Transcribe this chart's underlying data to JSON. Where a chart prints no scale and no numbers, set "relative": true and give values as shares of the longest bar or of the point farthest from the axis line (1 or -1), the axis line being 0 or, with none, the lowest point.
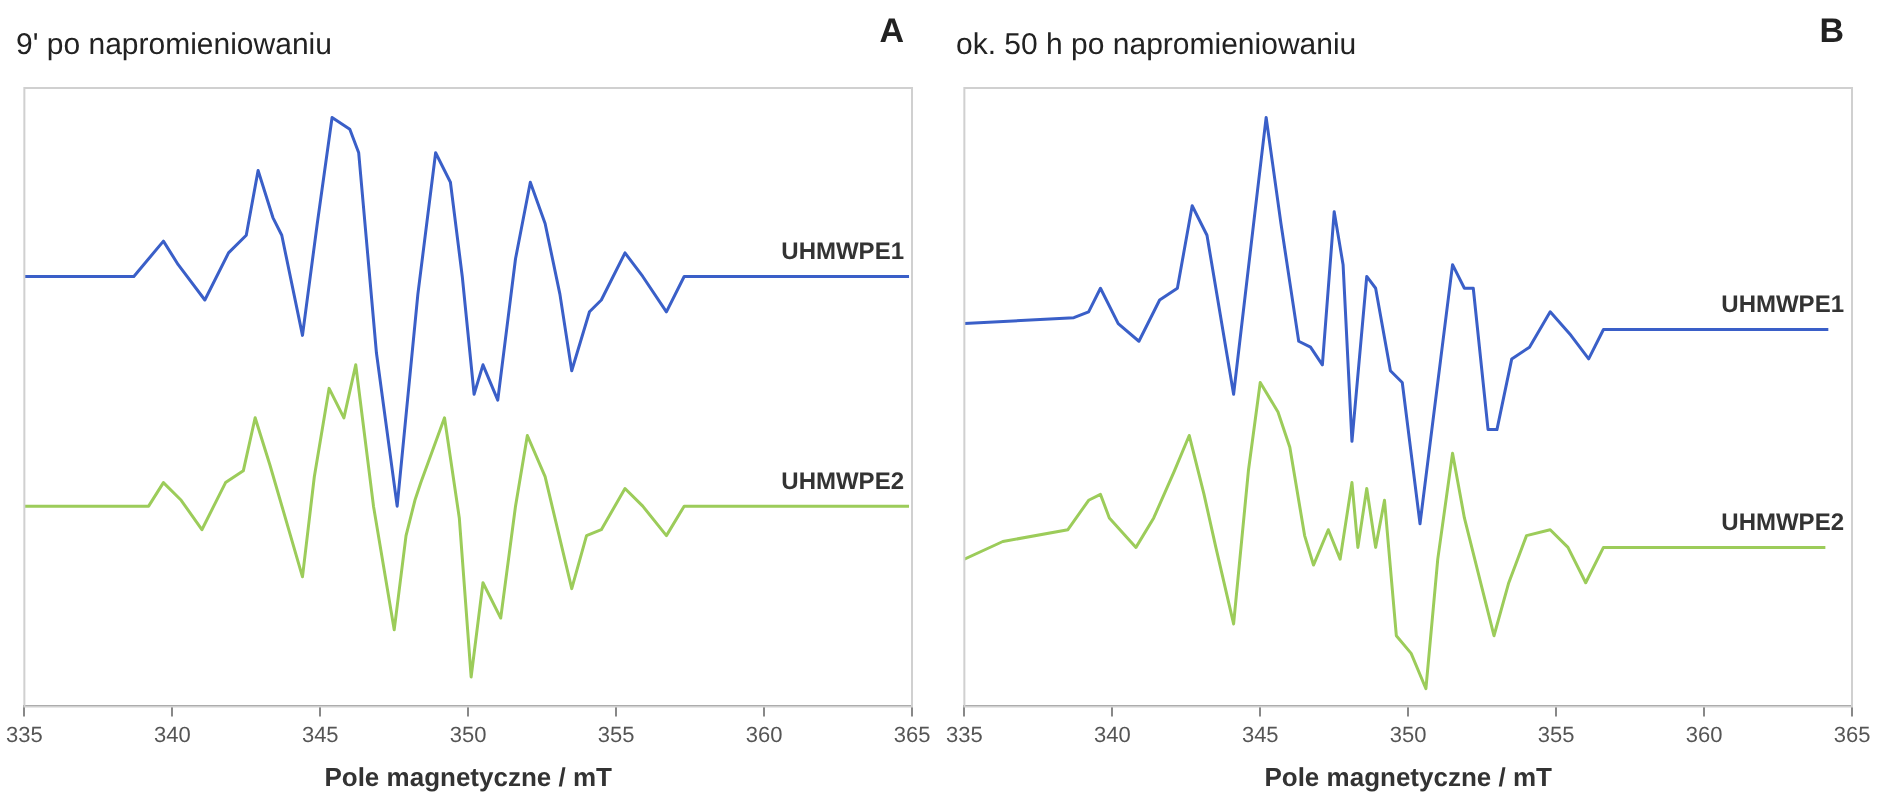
{
  "chart_data": [
    {
      "type": "line",
      "title": "9' po napromieniowaniu",
      "annotations": [
        "A"
      ],
      "xlabel": "Pole magnetyczne / mT",
      "xlim": [
        335,
        365
      ],
      "xticks": [
        335,
        340,
        345,
        350,
        355,
        360,
        365
      ],
      "relative": true,
      "marker": "none",
      "legend": false,
      "grid": false,
      "tick_labels": "x",
      "series": [
        {
          "name": "UHMWPE1",
          "color": "#3a5fc8",
          "x": [
            335,
            338.7,
            339.7,
            340.2,
            341.1,
            341.9,
            342.5,
            342.9,
            343.4,
            343.7,
            344.4,
            344.9,
            345.4,
            346.0,
            346.3,
            346.9,
            347.6,
            348.3,
            348.9,
            349.4,
            349.8,
            350.2,
            350.5,
            351.0,
            351.6,
            352.1,
            352.6,
            353.1,
            353.5,
            354.1,
            354.5,
            355.3,
            355.9,
            356.7,
            357.3,
            358.2,
            364.9
          ],
          "values": [
            0.73,
            0.73,
            0.79,
            0.75,
            0.69,
            0.77,
            0.8,
            0.91,
            0.83,
            0.8,
            0.63,
            0.82,
            1.0,
            0.98,
            0.94,
            0.6,
            0.34,
            0.7,
            0.94,
            0.89,
            0.73,
            0.53,
            0.58,
            0.52,
            0.76,
            0.89,
            0.82,
            0.7,
            0.57,
            0.67,
            0.69,
            0.77,
            0.73,
            0.67,
            0.73,
            0.73,
            0.73
          ]
        },
        {
          "name": "UHMWPE2",
          "color": "#9ccc5a",
          "x": [
            335,
            339.2,
            339.7,
            340.3,
            341.0,
            341.8,
            342.4,
            342.8,
            343.3,
            344.4,
            344.8,
            345.3,
            345.8,
            346.2,
            346.8,
            347.5,
            347.9,
            348.2,
            348.4,
            349.2,
            349.7,
            350.1,
            350.5,
            351.1,
            351.6,
            352.0,
            352.6,
            353.5,
            354.0,
            354.5,
            355.3,
            355.9,
            356.7,
            357.3,
            364.9
          ],
          "values": [
            0.34,
            0.34,
            0.38,
            0.35,
            0.3,
            0.38,
            0.4,
            0.49,
            0.41,
            0.22,
            0.39,
            0.54,
            0.49,
            0.58,
            0.34,
            0.13,
            0.29,
            0.35,
            0.38,
            0.49,
            0.32,
            0.05,
            0.21,
            0.15,
            0.34,
            0.46,
            0.39,
            0.2,
            0.29,
            0.3,
            0.37,
            0.34,
            0.29,
            0.34,
            0.34
          ]
        }
      ]
    },
    {
      "type": "line",
      "title": "ok. 50 h po napromieniowaniu",
      "annotations": [
        "B"
      ],
      "xlabel": "Pole magnetyczne / mT",
      "xlim": [
        335,
        365
      ],
      "xticks": [
        335,
        340,
        345,
        350,
        355,
        360,
        365
      ],
      "relative": true,
      "marker": "none",
      "legend": false,
      "grid": false,
      "tick_labels": "x",
      "series": [
        {
          "name": "UHMWPE1",
          "color": "#3a5fc8",
          "x": [
            335,
            338.7,
            339.2,
            339.6,
            340.2,
            340.9,
            341.6,
            342.2,
            342.7,
            343.2,
            344.1,
            344.8,
            345.2,
            345.7,
            346.0,
            346.3,
            346.7,
            347.1,
            347.5,
            347.8,
            348.1,
            348.6,
            348.9,
            349.4,
            349.8,
            350.4,
            351.1,
            351.5,
            351.9,
            352.2,
            352.7,
            353.0,
            353.5,
            354.1,
            354.8,
            355.5,
            356.1,
            356.6,
            358.1,
            364.2
          ],
          "values": [
            0.65,
            0.66,
            0.67,
            0.71,
            0.65,
            0.62,
            0.69,
            0.71,
            0.85,
            0.8,
            0.53,
            0.83,
            1.0,
            0.82,
            0.72,
            0.62,
            0.61,
            0.58,
            0.84,
            0.75,
            0.45,
            0.73,
            0.71,
            0.57,
            0.55,
            0.31,
            0.59,
            0.75,
            0.71,
            0.71,
            0.47,
            0.47,
            0.59,
            0.61,
            0.67,
            0.63,
            0.59,
            0.64,
            0.64,
            0.64
          ]
        },
        {
          "name": "UHMWPE2",
          "color": "#9ccc5a",
          "x": [
            335,
            336.3,
            338.5,
            339.2,
            339.6,
            339.9,
            340.8,
            341.4,
            342.1,
            342.6,
            343.1,
            343.5,
            344.1,
            344.6,
            345.0,
            345.6,
            346.0,
            346.5,
            346.8,
            347.3,
            347.7,
            348.1,
            348.3,
            348.6,
            348.9,
            349.2,
            349.6,
            350.1,
            350.6,
            351.0,
            351.5,
            351.9,
            352.5,
            352.9,
            353.4,
            354.0,
            354.8,
            355.4,
            356.0,
            356.6,
            360.5,
            364.1
          ],
          "values": [
            0.25,
            0.28,
            0.3,
            0.35,
            0.36,
            0.32,
            0.27,
            0.32,
            0.4,
            0.46,
            0.36,
            0.27,
            0.14,
            0.4,
            0.55,
            0.5,
            0.44,
            0.29,
            0.24,
            0.3,
            0.25,
            0.38,
            0.27,
            0.37,
            0.27,
            0.35,
            0.12,
            0.09,
            0.03,
            0.25,
            0.43,
            0.32,
            0.2,
            0.12,
            0.21,
            0.29,
            0.3,
            0.27,
            0.21,
            0.27,
            0.27,
            0.27
          ]
        }
      ]
    }
  ]
}
